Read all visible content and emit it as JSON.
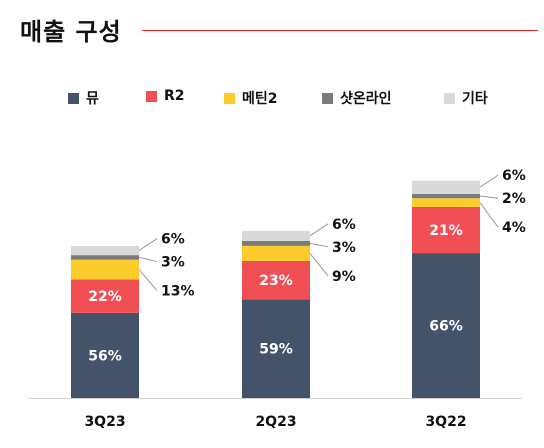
{
  "title": "매출 구성",
  "colors": {
    "accent_line": "#e8202a"
  },
  "chart_data": {
    "type": "bar",
    "stacked": true,
    "categories": [
      "3Q23",
      "2Q23",
      "3Q22"
    ],
    "series": [
      {
        "name": "뮤",
        "color": "#44526a",
        "values": [
          56,
          59,
          66
        ],
        "labels": [
          "56%",
          "59%",
          "66%"
        ]
      },
      {
        "name": "R2",
        "color": "#f24f55",
        "values": [
          22,
          23,
          21
        ],
        "labels": [
          "22%",
          "23%",
          "21%"
        ]
      },
      {
        "name": "메틴2",
        "color": "#fbcc2c",
        "values": [
          13,
          9,
          4
        ],
        "labels": [
          "13%",
          "9%",
          "4%"
        ]
      },
      {
        "name": "샷온라인",
        "color": "#7b7b7b",
        "values": [
          3,
          3,
          2
        ],
        "labels": [
          "3%",
          "3%",
          "2%"
        ]
      },
      {
        "name": "기타",
        "color": "#d9d9d9",
        "values": [
          6,
          6,
          6
        ],
        "labels": [
          "6%",
          "6%",
          "6%"
        ]
      }
    ],
    "relative_totals": [
      1.0,
      1.1,
      1.43
    ],
    "legend_position": "top",
    "grid": false,
    "xlabel": "",
    "ylabel": ""
  }
}
